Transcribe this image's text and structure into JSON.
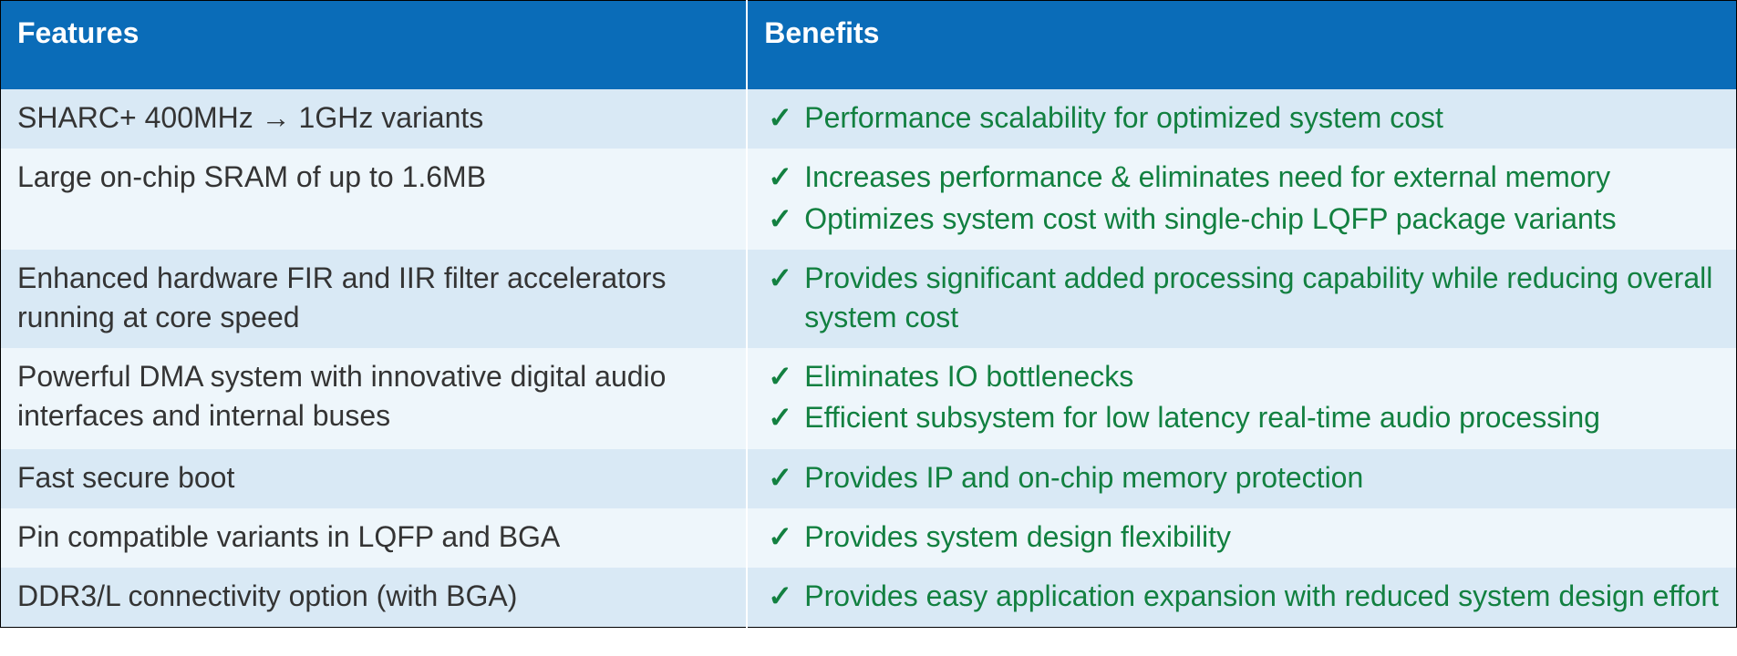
{
  "columns": [
    "Features",
    "Benefits"
  ],
  "header_bg": "#0a6cb8",
  "header_fg": "#ffffff",
  "row_bg_even": "#d9e9f5",
  "row_bg_odd": "#eef6fb",
  "feature_color": "#343434",
  "benefit_color": "#128040",
  "check_color": "#128040",
  "rows": [
    {
      "feature": "SHARC+ 400MHz → 1GHz variants",
      "benefits": [
        "Performance scalability for optimized system cost"
      ]
    },
    {
      "feature": "Large on-chip SRAM of up to 1.6MB",
      "benefits": [
        "Increases performance & eliminates need for external memory",
        "Optimizes system cost with single-chip LQFP package variants"
      ]
    },
    {
      "feature": "Enhanced hardware FIR and IIR filter accelerators running at core speed",
      "benefits": [
        "Provides significant added processing capability while reducing overall system cost"
      ]
    },
    {
      "feature": "Powerful DMA system with innovative digital audio interfaces and internal buses",
      "benefits": [
        "Eliminates IO bottlenecks",
        "Efficient subsystem for low latency real-time audio processing"
      ]
    },
    {
      "feature": "Fast secure boot",
      "benefits": [
        "Provides IP and on-chip memory protection"
      ]
    },
    {
      "feature": "Pin compatible variants in LQFP and BGA",
      "benefits": [
        "Provides system design flexibility"
      ]
    },
    {
      "feature": "DDR3/L connectivity option (with BGA)",
      "benefits": [
        "Provides easy application expansion with reduced system design effort"
      ]
    }
  ]
}
